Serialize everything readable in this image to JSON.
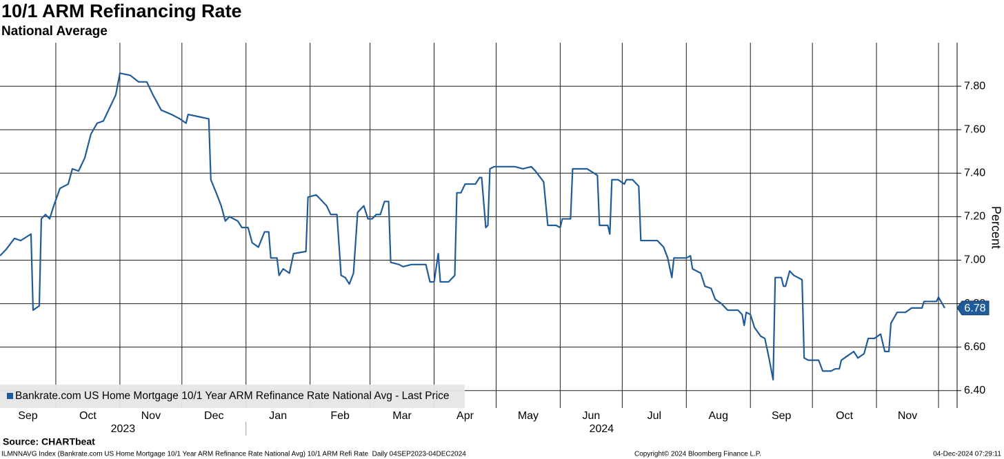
{
  "chart_data": {
    "type": "line",
    "title": "10/1 ARM Refinancing Rate",
    "subtitle": "National Average",
    "y_axis_label": "Percent",
    "source": "Source: CHARTbeat",
    "footer": {
      "left": "ILMNNAVG Index (Bankrate.com US Home Mortgage 10/1 Year ARM Refinance Rate National Avg) 10/1 ARM Refi Rate  Daily 04SEP2023-04DEC2024",
      "center": "Copyright© 2024 Bloomberg Finance L.P.",
      "right": "04-Dec-2024 07:29:11"
    },
    "last_price_label": "6.78",
    "xlim": [
      "2023-09-04",
      "2024-12-10"
    ],
    "xticks": [
      {
        "value": "2023-09-01",
        "label": "Sep"
      },
      {
        "value": "2023-10-01",
        "label": "Oct"
      },
      {
        "value": "2023-11-01",
        "label": "Nov"
      },
      {
        "value": "2023-12-01",
        "label": "Dec"
      },
      {
        "value": "2024-01-01",
        "label": "Jan"
      },
      {
        "value": "2024-02-01",
        "label": "Feb"
      },
      {
        "value": "2024-03-01",
        "label": "Mar"
      },
      {
        "value": "2024-04-01",
        "label": "Apr"
      },
      {
        "value": "2024-05-01",
        "label": "May"
      },
      {
        "value": "2024-06-01",
        "label": "Jun"
      },
      {
        "value": "2024-07-01",
        "label": "Jul"
      },
      {
        "value": "2024-08-01",
        "label": "Aug"
      },
      {
        "value": "2024-09-01",
        "label": "Sep"
      },
      {
        "value": "2024-10-01",
        "label": "Oct"
      },
      {
        "value": "2024-11-01",
        "label": "Nov"
      }
    ],
    "xgrid": [
      "2023-10-01",
      "2023-11-01",
      "2023-12-01",
      "2024-01-01",
      "2024-02-01",
      "2024-03-01",
      "2024-04-01",
      "2024-05-01",
      "2024-06-01",
      "2024-07-01",
      "2024-08-01",
      "2024-09-01",
      "2024-10-01",
      "2024-11-01",
      "2024-12-01"
    ],
    "years": [
      "2023",
      "2024"
    ],
    "ylim": [
      6.32,
      8.0
    ],
    "yticks": [
      {
        "value": 6.4,
        "label": "6.40"
      },
      {
        "value": 6.6,
        "label": "6.60"
      },
      {
        "value": 6.8,
        "label": "6.80"
      },
      {
        "value": 7.0,
        "label": "7.00"
      },
      {
        "value": 7.2,
        "label": "7.20"
      },
      {
        "value": 7.4,
        "label": "7.40"
      },
      {
        "value": 7.6,
        "label": "7.60"
      },
      {
        "value": 7.8,
        "label": "7.80"
      }
    ],
    "grid": true,
    "series": [
      {
        "name": "Bankrate.com US Home Mortgage 10/1 Year ARM Refinance Rate National Avg - Last Price",
        "color": "#1f5b98",
        "x": [
          "2023-09-04",
          "2023-09-07",
          "2023-09-11",
          "2023-09-14",
          "2023-09-19",
          "2023-09-20",
          "2023-09-23",
          "2023-09-24",
          "2023-09-26",
          "2023-09-28",
          "2023-09-30",
          "2023-10-03",
          "2023-10-07",
          "2023-10-09",
          "2023-10-12",
          "2023-10-15",
          "2023-10-18",
          "2023-10-21",
          "2023-10-24",
          "2023-10-27",
          "2023-10-30",
          "2023-11-01",
          "2023-11-06",
          "2023-11-10",
          "2023-11-14",
          "2023-11-17",
          "2023-11-21",
          "2023-11-26",
          "2023-11-30",
          "2023-12-03",
          "2023-12-04",
          "2023-12-09",
          "2023-12-14",
          "2023-12-15",
          "2023-12-18",
          "2023-12-20",
          "2023-12-22",
          "2023-12-24",
          "2023-12-28",
          "2023-12-30",
          "2024-01-02",
          "2024-01-04",
          "2024-01-07",
          "2024-01-10",
          "2024-01-12",
          "2024-01-13",
          "2024-01-16",
          "2024-01-17",
          "2024-01-19",
          "2024-01-22",
          "2024-01-24",
          "2024-01-30",
          "2024-01-31",
          "2024-02-04",
          "2024-02-06",
          "2024-02-09",
          "2024-02-11",
          "2024-02-14",
          "2024-02-16",
          "2024-02-18",
          "2024-02-20",
          "2024-02-22",
          "2024-02-24",
          "2024-02-27",
          "2024-02-29",
          "2024-03-02",
          "2024-03-04",
          "2024-03-06",
          "2024-03-08",
          "2024-03-10",
          "2024-03-11",
          "2024-03-15",
          "2024-03-17",
          "2024-03-21",
          "2024-03-28",
          "2024-03-30",
          "2024-04-01",
          "2024-04-03",
          "2024-04-04",
          "2024-04-08",
          "2024-04-11",
          "2024-04-12",
          "2024-04-14",
          "2024-04-16",
          "2024-04-21",
          "2024-04-23",
          "2024-04-24",
          "2024-04-26",
          "2024-04-27",
          "2024-04-28",
          "2024-04-30",
          "2024-05-10",
          "2024-05-14",
          "2024-05-18",
          "2024-05-20",
          "2024-05-24",
          "2024-05-26",
          "2024-05-30",
          "2024-06-01",
          "2024-06-02",
          "2024-06-06",
          "2024-06-07",
          "2024-06-14",
          "2024-06-19",
          "2024-06-20",
          "2024-06-24",
          "2024-06-25",
          "2024-06-26",
          "2024-06-29",
          "2024-07-02",
          "2024-07-03",
          "2024-07-06",
          "2024-07-09",
          "2024-07-10",
          "2024-07-18",
          "2024-07-21",
          "2024-07-23",
          "2024-07-25",
          "2024-07-26",
          "2024-08-01",
          "2024-08-03",
          "2024-08-04",
          "2024-08-08",
          "2024-08-10",
          "2024-08-13",
          "2024-08-15",
          "2024-08-18",
          "2024-08-21",
          "2024-08-26",
          "2024-08-28",
          "2024-08-29",
          "2024-08-30",
          "2024-09-01",
          "2024-09-03",
          "2024-09-06",
          "2024-09-08",
          "2024-09-10",
          "2024-09-12",
          "2024-09-13",
          "2024-09-16",
          "2024-09-17",
          "2024-09-18",
          "2024-09-20",
          "2024-09-22",
          "2024-09-24",
          "2024-09-26",
          "2024-09-27",
          "2024-09-29",
          "2024-10-04",
          "2024-10-06",
          "2024-10-10",
          "2024-10-12",
          "2024-10-14",
          "2024-10-15",
          "2024-10-18",
          "2024-10-21",
          "2024-10-23",
          "2024-10-26",
          "2024-10-28",
          "2024-10-31",
          "2024-11-03",
          "2024-11-05",
          "2024-11-07",
          "2024-11-08",
          "2024-11-11",
          "2024-11-15",
          "2024-11-18",
          "2024-11-23",
          "2024-11-24",
          "2024-11-27",
          "2024-11-30",
          "2024-12-01",
          "2024-12-04"
        ],
        "values": [
          7.02,
          7.05,
          7.1,
          7.09,
          7.12,
          6.77,
          6.79,
          7.19,
          7.21,
          7.19,
          7.25,
          7.33,
          7.35,
          7.42,
          7.41,
          7.47,
          7.58,
          7.63,
          7.64,
          7.7,
          7.76,
          7.86,
          7.85,
          7.82,
          7.82,
          7.76,
          7.69,
          7.67,
          7.65,
          7.63,
          7.67,
          7.66,
          7.65,
          7.37,
          7.3,
          7.25,
          7.18,
          7.2,
          7.18,
          7.15,
          7.15,
          7.08,
          7.06,
          7.13,
          7.13,
          7.01,
          7.01,
          6.93,
          6.96,
          6.94,
          7.03,
          7.04,
          7.29,
          7.3,
          7.28,
          7.25,
          7.21,
          7.21,
          6.93,
          6.92,
          6.89,
          6.94,
          7.22,
          7.25,
          7.19,
          7.19,
          7.21,
          7.21,
          7.27,
          7.27,
          6.99,
          6.98,
          6.97,
          6.98,
          6.98,
          6.9,
          6.9,
          7.03,
          6.9,
          6.9,
          6.93,
          7.31,
          7.31,
          7.35,
          7.35,
          7.38,
          7.38,
          7.15,
          7.16,
          7.42,
          7.43,
          7.43,
          7.42,
          7.43,
          7.41,
          7.36,
          7.16,
          7.16,
          7.15,
          7.19,
          7.19,
          7.42,
          7.42,
          7.39,
          7.16,
          7.16,
          7.12,
          7.37,
          7.37,
          7.35,
          7.37,
          7.37,
          7.34,
          7.09,
          7.09,
          7.06,
          7.01,
          6.92,
          7.01,
          7.01,
          7.02,
          6.96,
          6.94,
          6.88,
          6.87,
          6.82,
          6.8,
          6.77,
          6.77,
          6.75,
          6.7,
          6.76,
          6.75,
          6.69,
          6.65,
          6.64,
          6.55,
          6.45,
          6.92,
          6.92,
          6.88,
          6.88,
          6.95,
          6.93,
          6.92,
          6.91,
          6.55,
          6.54,
          6.54,
          6.49,
          6.49,
          6.5,
          6.5,
          6.54,
          6.56,
          6.58,
          6.55,
          6.57,
          6.64,
          6.64,
          6.66,
          6.58,
          6.58,
          6.71,
          6.76,
          6.76,
          6.78,
          6.78,
          6.81,
          6.81,
          6.81,
          6.83,
          6.78
        ]
      }
    ]
  }
}
